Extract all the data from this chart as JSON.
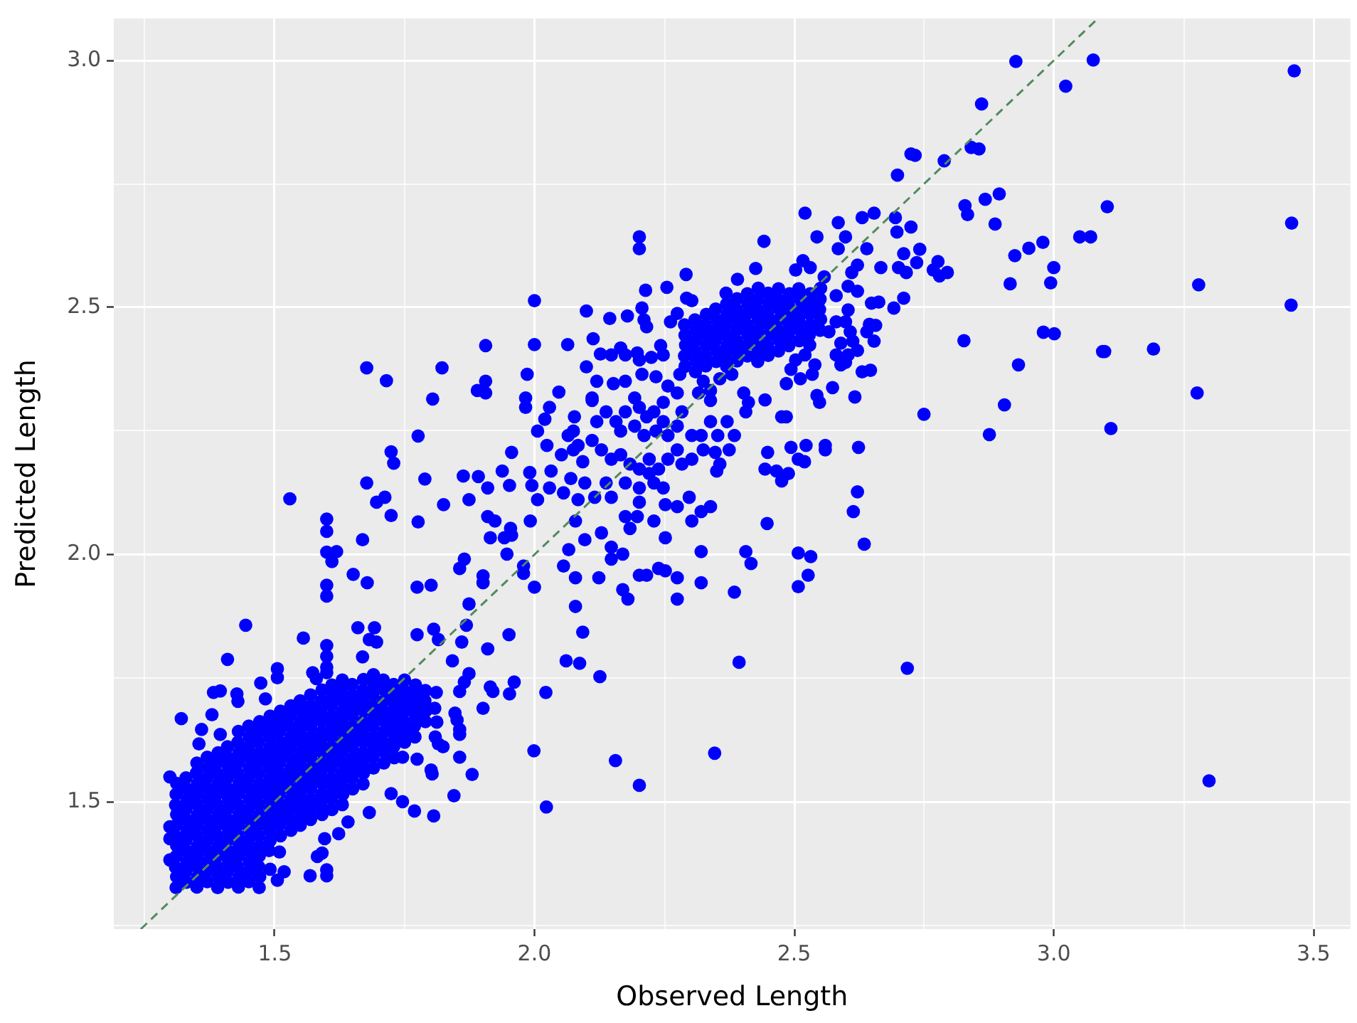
{
  "chart_data": {
    "type": "scatter",
    "xlabel": "Observed Length",
    "ylabel": "Predicted Length",
    "xlim": [
      1.19,
      3.571
    ],
    "ylim": [
      1.242,
      3.085
    ],
    "xticks": [
      {
        "value": 1.25,
        "label": null
      },
      1.5,
      {
        "value": 1.75,
        "label": null
      },
      {
        "value": 2,
        "label": "2.0"
      },
      {
        "value": 2.25,
        "label": null
      },
      2.5,
      {
        "value": 2.75,
        "label": null
      },
      {
        "value": 3,
        "label": "3.0"
      },
      {
        "value": 3.25,
        "label": null
      },
      3.5
    ],
    "yticks": [
      {
        "value": 1.25,
        "label": null
      },
      1.5,
      {
        "value": 1.75,
        "label": null
      },
      {
        "value": 2,
        "label": "2.0"
      },
      {
        "value": 2.25,
        "label": null
      },
      2.5,
      {
        "value": 2.75,
        "label": null
      },
      {
        "value": 3,
        "label": "3.0"
      }
    ],
    "grid": true,
    "series": [
      {
        "type": "scatter",
        "color": "#0000ff",
        "marker": "circle",
        "x": [
          1.6,
          1.619,
          1.61,
          1.651,
          1.678,
          1.6,
          1.6,
          1.865,
          1.856,
          1.901,
          1.901,
          1.774,
          1.801,
          1.874,
          1.444,
          1.555,
          1.66,
          1.692,
          1.682,
          1.696,
          1.6,
          1.6,
          1.6,
          1.669,
          1.774,
          1.806,
          1.815,
          1.869,
          1.86,
          1.91,
          2.061,
          1.409,
          1.505,
          1.505,
          1.473,
          1.382,
          1.395,
          1.427,
          1.429,
          1.482,
          1.58,
          1.842,
          1.874,
          1.865,
          1.856,
          1.915,
          1.92,
          1.961,
          1.952,
          2.022,
          1.901,
          1.32,
          1.847,
          1.851,
          1.856,
          1.856,
          1.815,
          1.824,
          1.856,
          1.746,
          1.774,
          1.801,
          1.803,
          1.88,
          1.999,
          2.023,
          1.845,
          1.724,
          1.746,
          1.769,
          1.806,
          1.682,
          1.641,
          1.596,
          1.591,
          1.509,
          1.582,
          1.568,
          1.6,
          1.6,
          1.505,
          1.298,
          1.298,
          1.298,
          1.298,
          1.623,
          1.518,
          1.491,
          1.809,
          1.812,
          1.808,
          1.811,
          1.379,
          1.359,
          1.354,
          1.395,
          1.573,
          1.6,
          1.529,
          1.6,
          1.6,
          1.669,
          1.677,
          1.715,
          1.724,
          1.729,
          1.677,
          1.696,
          1.712,
          1.776,
          1.724,
          1.822,
          1.789,
          1.825,
          1.863,
          1.892,
          1.776,
          1.874,
          1.804,
          1.89,
          2.394,
          2.347,
          2.156,
          2.202,
          2.126,
          2.087,
          2.202,
          2.202,
          2,
          2.442,
          2.521,
          2.585,
          2.631,
          2.544,
          2.599,
          2.585,
          2.64,
          2.622,
          2.611,
          2.517,
          2.503,
          2.531,
          2.292,
          2.426,
          2.391,
          2.558,
          2.214,
          2.255,
          2.293,
          2.303,
          2.1,
          2.145,
          2.179,
          2.207,
          2.211,
          2.216,
          2.275,
          2.262,
          2.581,
          2.604,
          2.622,
          2.604,
          2.599,
          2.608,
          2.613,
          2.59,
          2.567,
          2.581,
          2.64,
          2.064,
          2,
          2.113,
          2.127,
          2.148,
          2.166,
          2.175,
          2.198,
          2.202,
          2.225,
          2.243,
          2.248,
          2.503,
          2.521,
          2.54,
          2.494,
          2.581,
          2.604,
          2.622,
          2.59,
          2.599,
          2.631,
          2.1,
          1.986,
          2.12,
          2.111,
          2.152,
          2.175,
          2.047,
          2.207,
          2.234,
          2.257,
          2.28,
          2.325,
          2.339,
          2.316,
          2.357,
          2.38,
          2.403,
          2.412,
          2.407,
          2.444,
          2.512,
          2.535,
          2.544,
          2.549,
          2.574,
          2.617,
          1.983,
          1.983,
          2.029,
          2.077,
          2.075,
          2.084,
          2.111,
          2.12,
          2.138,
          2.157,
          2.175,
          2.166,
          2.193,
          2.202,
          2.216,
          2.23,
          2.248,
          2.193,
          2.211,
          2.234,
          2.248,
          2.257,
          2.275,
          2.284,
          2.303,
          2.321,
          2.339,
          2.353,
          2.371,
          2.385,
          2.375,
          2.476,
          2.485,
          2.006,
          2.024,
          2.052,
          2.065,
          2.075,
          2.093,
          2.111,
          2.129,
          2.148,
          2.166,
          2.184,
          2.202,
          2.221,
          2.239,
          2.257,
          2.275,
          2.284,
          2.303,
          2.325,
          2.348,
          2.357,
          2.449,
          2.494,
          2.444,
          2.466,
          2.489,
          2.476,
          1.956,
          1.938,
          1.952,
          1.991,
          1.995,
          2.032,
          2.006,
          2.029,
          2.056,
          2.07,
          2.084,
          2.097,
          2.116,
          2.138,
          2.148,
          2.175,
          2.202,
          2.221,
          2.23,
          2.248,
          2.202,
          2.351,
          2.298,
          2.275,
          2.339,
          2.321,
          2.303,
          2.448,
          2.407,
          2.417,
          2.385,
          2.321,
          2.321,
          2.275,
          2.275,
          2.239,
          2.252,
          2.202,
          2.216,
          2.252,
          2.23,
          2.252,
          2.175,
          2.198,
          2.184,
          2.129,
          2.097,
          2.079,
          2.148,
          2.148,
          2.17,
          2.066,
          2.056,
          2.079,
          2.124,
          2.17,
          2.18,
          2.079,
          2.093,
          1.954,
          1.956,
          1.942,
          1.992,
          1.915,
          1.947,
          1.979,
          1.979,
          2,
          1.951,
          1.906,
          1.906,
          1.906,
          2.02,
          1.91,
          1.91,
          1.924,
          2.275,
          2.339,
          2.485,
          2.927,
          3.076,
          3.463,
          3.023,
          2.861,
          2.841,
          2.856,
          2.789,
          2.725,
          2.733,
          2.699,
          2.895,
          2.868,
          2.829,
          2.834,
          2.887,
          3.103,
          3.458,
          2.654,
          2.695,
          2.698,
          2.725,
          2.742,
          2.711,
          2.736,
          2.701,
          2.716,
          2.667,
          2.777,
          2.768,
          2.795,
          2.78,
          3.05,
          3.071,
          2.979,
          2.952,
          2.925,
          3,
          2.994,
          2.916,
          3.279,
          3.457,
          2.649,
          2.663,
          2.711,
          2.692,
          2.645,
          2.657,
          2.654,
          2.647,
          2.827,
          2.98,
          3.001,
          3.094,
          3.098,
          3.192,
          2.932,
          3.276,
          2.75,
          2.905,
          2.876,
          3.11,
          2.523,
          2.56,
          2.56,
          2.624,
          2.508,
          2.52,
          2.622,
          2.614,
          2.635,
          2.508,
          2.532,
          2.527,
          2.508,
          2.718,
          3.299,
          2.29,
          2.289,
          2.291,
          2.29,
          2.289,
          2.31,
          2.311,
          2.309,
          2.31,
          2.311,
          2.309,
          2.33,
          2.329,
          2.331,
          2.33,
          2.329,
          2.331,
          2.35,
          2.351,
          2.349,
          2.35,
          2.351,
          2.349,
          2.37,
          2.369,
          2.371,
          2.37,
          2.369,
          2.371,
          2.37,
          2.369,
          2.39,
          2.391,
          2.389,
          2.39,
          2.391,
          2.389,
          2.39,
          2.41,
          2.409,
          2.411,
          2.41,
          2.409,
          2.411,
          2.41,
          2.43,
          2.431,
          2.429,
          2.43,
          2.431,
          2.429,
          2.43,
          2.431,
          2.45,
          2.449,
          2.451,
          2.45,
          2.449,
          2.451,
          2.45,
          2.47,
          2.471,
          2.469,
          2.47,
          2.471,
          2.469,
          2.47,
          2.49,
          2.489,
          2.491,
          2.49,
          2.489,
          2.491,
          2.51,
          2.511,
          2.509,
          2.51,
          2.511,
          2.509,
          2.53,
          2.529,
          2.531,
          2.53,
          2.529,
          2.531,
          2.55,
          2.551,
          2.549,
          2.55,
          2.551,
          1.31,
          1.311,
          1.309,
          1.31,
          1.311,
          1.309,
          1.31,
          1.311,
          1.309,
          1.31,
          1.311,
          1.33,
          1.329,
          1.331,
          1.33,
          1.329,
          1.331,
          1.33,
          1.329,
          1.331,
          1.33,
          1.329,
          1.35,
          1.351,
          1.349,
          1.35,
          1.351,
          1.349,
          1.35,
          1.351,
          1.349,
          1.35,
          1.351,
          1.349,
          1.35,
          1.37,
          1.369,
          1.371,
          1.37,
          1.369,
          1.371,
          1.37,
          1.369,
          1.371,
          1.37,
          1.369,
          1.371,
          1.37,
          1.39,
          1.391,
          1.389,
          1.39,
          1.391,
          1.389,
          1.39,
          1.391,
          1.389,
          1.39,
          1.391,
          1.389,
          1.39,
          1.391,
          1.41,
          1.409,
          1.411,
          1.41,
          1.409,
          1.411,
          1.41,
          1.409,
          1.411,
          1.41,
          1.409,
          1.411,
          1.41,
          1.409,
          1.43,
          1.431,
          1.429,
          1.43,
          1.431,
          1.429,
          1.43,
          1.431,
          1.429,
          1.43,
          1.431,
          1.429,
          1.43,
          1.431,
          1.429,
          1.43,
          1.45,
          1.449,
          1.451,
          1.45,
          1.449,
          1.451,
          1.45,
          1.449,
          1.451,
          1.45,
          1.449,
          1.451,
          1.45,
          1.449,
          1.451,
          1.45,
          1.47,
          1.471,
          1.469,
          1.47,
          1.471,
          1.469,
          1.47,
          1.471,
          1.469,
          1.47,
          1.471,
          1.469,
          1.47,
          1.471,
          1.469,
          1.47,
          1.471,
          1.489,
          1.491,
          1.49,
          1.489,
          1.491,
          1.49,
          1.489,
          1.491,
          1.49,
          1.489,
          1.491,
          1.49,
          1.489,
          1.491,
          1.511,
          1.509,
          1.51,
          1.511,
          1.509,
          1.51,
          1.511,
          1.509,
          1.51,
          1.511,
          1.509,
          1.51,
          1.511,
          1.531,
          1.53,
          1.529,
          1.531,
          1.53,
          1.529,
          1.531,
          1.53,
          1.529,
          1.531,
          1.53,
          1.529,
          1.531,
          1.549,
          1.55,
          1.551,
          1.549,
          1.55,
          1.551,
          1.549,
          1.55,
          1.551,
          1.549,
          1.55,
          1.551,
          1.549,
          1.569,
          1.571,
          1.57,
          1.569,
          1.571,
          1.57,
          1.569,
          1.571,
          1.57,
          1.569,
          1.571,
          1.57,
          1.569,
          1.591,
          1.589,
          1.59,
          1.591,
          1.589,
          1.59,
          1.591,
          1.589,
          1.59,
          1.591,
          1.589,
          1.59,
          1.591,
          1.61,
          1.609,
          1.611,
          1.61,
          1.609,
          1.611,
          1.61,
          1.609,
          1.611,
          1.61,
          1.609,
          1.611,
          1.61,
          1.63,
          1.631,
          1.629,
          1.63,
          1.631,
          1.629,
          1.63,
          1.631,
          1.629,
          1.63,
          1.631,
          1.629,
          1.63,
          1.65,
          1.649,
          1.651,
          1.65,
          1.649,
          1.651,
          1.65,
          1.649,
          1.651,
          1.65,
          1.649,
          1.67,
          1.671,
          1.669,
          1.67,
          1.671,
          1.669,
          1.67,
          1.671,
          1.669,
          1.67,
          1.671,
          1.69,
          1.689,
          1.691,
          1.69,
          1.689,
          1.691,
          1.69,
          1.689,
          1.691,
          1.69,
          1.71,
          1.711,
          1.709,
          1.71,
          1.711,
          1.709,
          1.71,
          1.711,
          1.709,
          1.73,
          1.729,
          1.731,
          1.73,
          1.729,
          1.731,
          1.73,
          1.729,
          1.75,
          1.751,
          1.749,
          1.75,
          1.751,
          1.749,
          1.75,
          1.77,
          1.769,
          1.771,
          1.77,
          1.769,
          1.771,
          1.79,
          1.791,
          1.789,
          1.79
        ],
        "values": [
          2.005,
          2.006,
          1.986,
          1.96,
          1.943,
          1.938,
          1.916,
          1.991,
          1.972,
          1.957,
          1.943,
          1.934,
          1.938,
          1.9,
          1.857,
          1.831,
          1.852,
          1.852,
          1.828,
          1.823,
          1.816,
          1.794,
          1.772,
          1.793,
          1.838,
          1.849,
          1.828,
          1.857,
          1.823,
          1.809,
          1.785,
          1.788,
          1.769,
          1.751,
          1.74,
          1.721,
          1.724,
          1.718,
          1.703,
          1.708,
          1.749,
          1.785,
          1.759,
          1.742,
          1.723,
          1.732,
          1.723,
          1.742,
          1.718,
          1.721,
          1.689,
          1.668,
          1.679,
          1.665,
          1.646,
          1.636,
          1.617,
          1.611,
          1.59,
          1.59,
          1.586,
          1.564,
          1.556,
          1.555,
          1.603,
          1.489,
          1.512,
          1.516,
          1.5,
          1.481,
          1.471,
          1.478,
          1.459,
          1.425,
          1.396,
          1.398,
          1.389,
          1.35,
          1.35,
          1.362,
          1.341,
          1.55,
          1.449,
          1.425,
          1.382,
          1.435,
          1.358,
          1.363,
          1.631,
          1.661,
          1.689,
          1.721,
          1.676,
          1.646,
          1.617,
          1.636,
          1.761,
          1.761,
          2.113,
          2.072,
          2.047,
          2.03,
          2.378,
          2.352,
          2.208,
          2.185,
          2.145,
          2.106,
          2.116,
          2.24,
          2.079,
          2.378,
          2.153,
          2.101,
          2.159,
          2.158,
          2.066,
          2.111,
          2.315,
          2.332,
          1.782,
          1.598,
          1.583,
          1.533,
          1.753,
          1.78,
          2.643,
          2.619,
          2.514,
          2.634,
          2.691,
          2.672,
          2.682,
          2.643,
          2.643,
          2.619,
          2.619,
          2.586,
          2.571,
          2.595,
          2.576,
          2.581,
          2.567,
          2.579,
          2.557,
          2.562,
          2.535,
          2.541,
          2.519,
          2.514,
          2.493,
          2.478,
          2.483,
          2.499,
          2.475,
          2.461,
          2.488,
          2.471,
          2.524,
          2.543,
          2.533,
          2.495,
          2.471,
          2.451,
          2.432,
          2.428,
          2.451,
          2.471,
          2.451,
          2.425,
          2.425,
          2.437,
          2.406,
          2.404,
          2.418,
          2.404,
          2.408,
          2.394,
          2.399,
          2.423,
          2.404,
          2.394,
          2.404,
          2.384,
          2.375,
          2.404,
          2.404,
          2.413,
          2.384,
          2.389,
          2.37,
          2.38,
          2.365,
          2.351,
          2.317,
          2.346,
          2.351,
          2.329,
          2.365,
          2.36,
          2.341,
          2.365,
          2.351,
          2.332,
          2.327,
          2.356,
          2.365,
          2.327,
          2.308,
          2.289,
          2.313,
          2.356,
          2.365,
          2.322,
          2.308,
          2.338,
          2.319,
          2.317,
          2.298,
          2.298,
          2.279,
          2.25,
          2.221,
          2.312,
          2.269,
          2.289,
          2.269,
          2.289,
          2.25,
          2.317,
          2.298,
          2.279,
          2.289,
          2.308,
          2.26,
          2.241,
          2.25,
          2.269,
          2.241,
          2.26,
          2.289,
          2.241,
          2.241,
          2.269,
          2.241,
          2.269,
          2.241,
          2.212,
          2.279,
          2.279,
          2.25,
          2.221,
          2.202,
          2.241,
          2.212,
          2.188,
          2.231,
          2.212,
          2.193,
          2.202,
          2.183,
          2.173,
          2.193,
          2.173,
          2.193,
          2.212,
          2.183,
          2.193,
          2.212,
          2.207,
          2.183,
          2.207,
          2.217,
          2.173,
          2.169,
          2.164,
          2.149,
          2.207,
          2.169,
          2.14,
          2.166,
          2.14,
          2.169,
          2.111,
          2.135,
          2.125,
          2.154,
          2.111,
          2.145,
          2.116,
          2.145,
          2.116,
          2.145,
          2.135,
          2.164,
          2.145,
          2.135,
          2.106,
          2.169,
          2.116,
          2.097,
          2.097,
          2.087,
          2.068,
          2.063,
          2.006,
          1.982,
          1.924,
          2.006,
          1.943,
          1.953,
          1.91,
          1.972,
          1.967,
          1.958,
          1.958,
          2.034,
          2.068,
          2.101,
          2.077,
          2.077,
          2.053,
          2.044,
          2.03,
          2.068,
          2.015,
          1.991,
          2.001,
          2.01,
          1.977,
          1.953,
          1.953,
          1.929,
          1.91,
          1.895,
          1.843,
          2.053,
          2.039,
          2.034,
          2.068,
          2.034,
          2.001,
          1.977,
          1.962,
          1.934,
          1.838,
          2.423,
          2.351,
          2.327,
          2.274,
          2.135,
          2.077,
          2.068,
          2.327,
          2.312,
          2.346,
          2.998,
          3.001,
          2.979,
          2.948,
          2.912,
          2.824,
          2.821,
          2.797,
          2.811,
          2.808,
          2.768,
          2.73,
          2.719,
          2.706,
          2.688,
          2.669,
          2.704,
          2.671,
          2.691,
          2.682,
          2.653,
          2.663,
          2.618,
          2.609,
          2.591,
          2.581,
          2.571,
          2.581,
          2.593,
          2.576,
          2.571,
          2.564,
          2.643,
          2.643,
          2.632,
          2.62,
          2.605,
          2.581,
          2.55,
          2.548,
          2.546,
          2.505,
          2.509,
          2.511,
          2.519,
          2.499,
          2.466,
          2.464,
          2.432,
          2.373,
          2.433,
          2.45,
          2.447,
          2.411,
          2.411,
          2.416,
          2.384,
          2.327,
          2.284,
          2.303,
          2.243,
          2.255,
          2.221,
          2.221,
          2.212,
          2.217,
          2.193,
          2.188,
          2.127,
          2.087,
          2.021,
          2.003,
          1.996,
          1.958,
          1.935,
          1.77,
          1.542,
          2.381,
          2.402,
          2.424,
          2.444,
          2.465,
          2.37,
          2.392,
          2.412,
          2.433,
          2.455,
          2.475,
          2.382,
          2.402,
          2.423,
          2.445,
          2.465,
          2.486,
          2.391,
          2.412,
          2.434,
          2.454,
          2.475,
          2.497,
          2.381,
          2.403,
          2.423,
          2.444,
          2.466,
          2.486,
          2.507,
          2.529,
          2.392,
          2.412,
          2.433,
          2.455,
          2.475,
          2.496,
          2.518,
          2.402,
          2.424,
          2.444,
          2.465,
          2.487,
          2.507,
          2.528,
          2.391,
          2.413,
          2.433,
          2.454,
          2.476,
          2.496,
          2.517,
          2.539,
          2.403,
          2.423,
          2.444,
          2.466,
          2.486,
          2.507,
          2.529,
          2.412,
          2.434,
          2.454,
          2.475,
          2.497,
          2.517,
          2.538,
          2.423,
          2.445,
          2.465,
          2.486,
          2.508,
          2.528,
          2.433,
          2.455,
          2.475,
          2.496,
          2.518,
          2.538,
          2.424,
          2.444,
          2.465,
          2.487,
          2.507,
          2.528,
          2.454,
          2.476,
          2.496,
          2.517,
          2.539,
          1.326,
          1.348,
          1.367,
          1.389,
          1.411,
          1.43,
          1.452,
          1.474,
          1.493,
          1.515,
          1.537,
          1.337,
          1.359,
          1.378,
          1.4,
          1.422,
          1.441,
          1.463,
          1.485,
          1.504,
          1.526,
          1.548,
          1.327,
          1.347,
          1.369,
          1.389,
          1.41,
          1.432,
          1.452,
          1.473,
          1.495,
          1.515,
          1.536,
          1.558,
          1.578,
          1.338,
          1.358,
          1.379,
          1.401,
          1.421,
          1.442,
          1.464,
          1.484,
          1.505,
          1.527,
          1.547,
          1.568,
          1.59,
          1.326,
          1.348,
          1.368,
          1.39,
          1.41,
          1.431,
          1.453,
          1.473,
          1.494,
          1.516,
          1.536,
          1.557,
          1.579,
          1.599,
          1.337,
          1.359,
          1.379,
          1.4,
          1.422,
          1.442,
          1.463,
          1.485,
          1.505,
          1.526,
          1.548,
          1.568,
          1.589,
          1.611,
          1.327,
          1.347,
          1.368,
          1.39,
          1.41,
          1.431,
          1.453,
          1.473,
          1.494,
          1.516,
          1.536,
          1.557,
          1.579,
          1.599,
          1.62,
          1.642,
          1.338,
          1.358,
          1.379,
          1.401,
          1.421,
          1.442,
          1.464,
          1.484,
          1.505,
          1.527,
          1.547,
          1.568,
          1.59,
          1.61,
          1.631,
          1.653,
          1.326,
          1.348,
          1.368,
          1.39,
          1.41,
          1.431,
          1.453,
          1.473,
          1.494,
          1.516,
          1.536,
          1.557,
          1.579,
          1.599,
          1.62,
          1.642,
          1.662,
          1.401,
          1.421,
          1.442,
          1.464,
          1.484,
          1.505,
          1.527,
          1.547,
          1.568,
          1.59,
          1.61,
          1.631,
          1.653,
          1.673,
          1.431,
          1.453,
          1.473,
          1.494,
          1.516,
          1.536,
          1.557,
          1.579,
          1.599,
          1.62,
          1.642,
          1.662,
          1.683,
          1.442,
          1.463,
          1.485,
          1.505,
          1.526,
          1.548,
          1.568,
          1.589,
          1.611,
          1.631,
          1.652,
          1.674,
          1.694,
          1.452,
          1.474,
          1.494,
          1.515,
          1.537,
          1.557,
          1.578,
          1.6,
          1.62,
          1.641,
          1.663,
          1.683,
          1.704,
          1.464,
          1.484,
          1.505,
          1.527,
          1.547,
          1.568,
          1.59,
          1.61,
          1.631,
          1.653,
          1.673,
          1.694,
          1.716,
          1.474,
          1.494,
          1.515,
          1.537,
          1.557,
          1.578,
          1.6,
          1.62,
          1.641,
          1.663,
          1.683,
          1.704,
          1.726,
          1.484,
          1.506,
          1.526,
          1.547,
          1.569,
          1.589,
          1.61,
          1.632,
          1.652,
          1.673,
          1.695,
          1.715,
          1.736,
          1.494,
          1.515,
          1.537,
          1.557,
          1.578,
          1.6,
          1.62,
          1.641,
          1.663,
          1.683,
          1.704,
          1.726,
          1.746,
          1.526,
          1.548,
          1.568,
          1.589,
          1.611,
          1.631,
          1.652,
          1.674,
          1.694,
          1.715,
          1.737,
          1.536,
          1.558,
          1.578,
          1.599,
          1.621,
          1.641,
          1.662,
          1.684,
          1.704,
          1.725,
          1.747,
          1.568,
          1.59,
          1.61,
          1.631,
          1.653,
          1.673,
          1.694,
          1.716,
          1.736,
          1.757,
          1.578,
          1.6,
          1.62,
          1.641,
          1.663,
          1.683,
          1.704,
          1.726,
          1.746,
          1.589,
          1.611,
          1.631,
          1.652,
          1.674,
          1.694,
          1.715,
          1.737,
          1.62,
          1.642,
          1.662,
          1.683,
          1.705,
          1.725,
          1.746,
          1.631,
          1.653,
          1.673,
          1.694,
          1.716,
          1.736,
          1.662,
          1.684,
          1.704,
          1.725
        ]
      },
      {
        "type": "line",
        "color": "#528a5e",
        "line_style": "dashed",
        "marker": "none",
        "x": [
          1.242,
          3.085
        ],
        "values": [
          1.242,
          3.085
        ]
      }
    ]
  }
}
